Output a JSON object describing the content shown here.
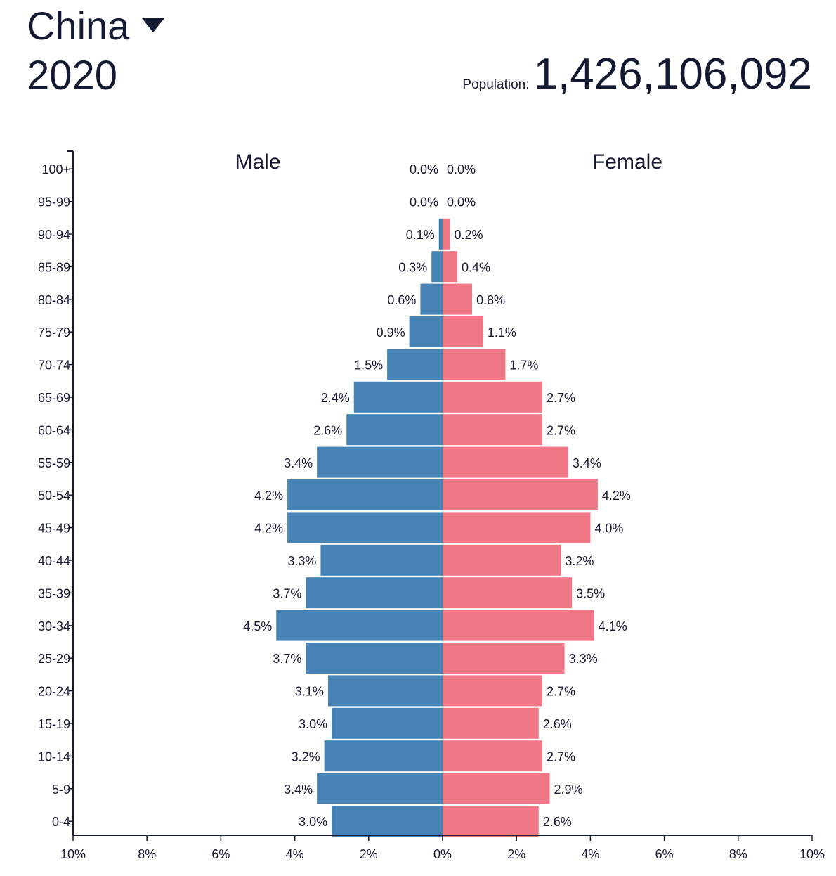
{
  "header": {
    "country": "China",
    "year": "2020",
    "population_label": "Population:",
    "population_value": "1,426,106,092"
  },
  "chart_data": {
    "type": "bar",
    "orientation": "horizontal-pyramid",
    "title": "",
    "categories": [
      "100+",
      "95-99",
      "90-94",
      "85-89",
      "80-84",
      "75-79",
      "70-74",
      "65-69",
      "60-64",
      "55-59",
      "50-54",
      "45-49",
      "40-44",
      "35-39",
      "30-34",
      "25-29",
      "20-24",
      "15-19",
      "10-14",
      "5-9",
      "0-4"
    ],
    "series": [
      {
        "name": "Male",
        "color": "#4682b4",
        "values": [
          0.0,
          0.0,
          0.1,
          0.3,
          0.6,
          0.9,
          1.5,
          2.4,
          2.6,
          3.4,
          4.2,
          4.2,
          3.3,
          3.7,
          4.5,
          3.7,
          3.1,
          3.0,
          3.2,
          3.4,
          3.0
        ],
        "labels": [
          "0.0%",
          "0.0%",
          "0.1%",
          "0.3%",
          "0.6%",
          "0.9%",
          "1.5%",
          "2.4%",
          "2.6%",
          "3.4%",
          "4.2%",
          "4.2%",
          "3.3%",
          "3.7%",
          "4.5%",
          "3.7%",
          "3.1%",
          "3.0%",
          "3.2%",
          "3.4%",
          "3.0%"
        ]
      },
      {
        "name": "Female",
        "color": "#f07785",
        "values": [
          0.0,
          0.0,
          0.2,
          0.4,
          0.8,
          1.1,
          1.7,
          2.7,
          2.7,
          3.4,
          4.2,
          4.0,
          3.2,
          3.5,
          4.1,
          3.3,
          2.7,
          2.6,
          2.7,
          2.9,
          2.6
        ],
        "labels": [
          "0.0%",
          "0.0%",
          "0.2%",
          "0.4%",
          "0.8%",
          "1.1%",
          "1.7%",
          "2.7%",
          "2.7%",
          "3.4%",
          "4.2%",
          "4.0%",
          "3.2%",
          "3.5%",
          "4.1%",
          "3.3%",
          "2.7%",
          "2.6%",
          "2.7%",
          "2.9%",
          "2.6%"
        ]
      }
    ],
    "x_ticks": [
      "10%",
      "8%",
      "6%",
      "4%",
      "2%",
      "0%",
      "2%",
      "4%",
      "6%",
      "8%",
      "10%"
    ],
    "xlim": [
      -10,
      10
    ],
    "grid": false
  }
}
